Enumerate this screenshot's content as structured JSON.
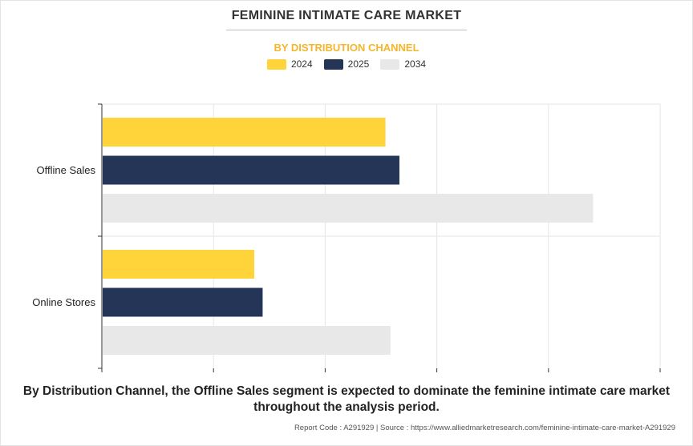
{
  "title": "FEMININE INTIMATE CARE MARKET",
  "subtitle": "BY DISTRIBUTION CHANNEL",
  "summary": "By Distribution Channel, the Offline Sales segment is expected to dominate the feminine intimate care market throughout the analysis period.",
  "source": "Report Code : A291929  |  Source : https://www.alliedmarketresearch.com/feminine-intimate-care-market-A291929",
  "colors": {
    "2024": "#ffd43b",
    "2025": "#253558",
    "2034": "#e8e8e8"
  },
  "chart_data": {
    "type": "bar",
    "orientation": "horizontal",
    "categories": [
      "Offline Sales",
      "Online Stores"
    ],
    "series": [
      {
        "name": "2024",
        "values": [
          5.08,
          2.73
        ],
        "color": "#ffd43b"
      },
      {
        "name": "2025",
        "values": [
          5.33,
          2.88
        ],
        "color": "#253558"
      },
      {
        "name": "2034",
        "values": [
          8.8,
          5.17
        ],
        "color": "#e8e8e8"
      }
    ],
    "xlim": [
      0,
      10
    ],
    "x_tick_labels_shown": false,
    "grid": true,
    "legend_position": "top-center",
    "title": "FEMININE INTIMATE CARE MARKET",
    "subtitle": "BY DISTRIBUTION CHANNEL"
  }
}
